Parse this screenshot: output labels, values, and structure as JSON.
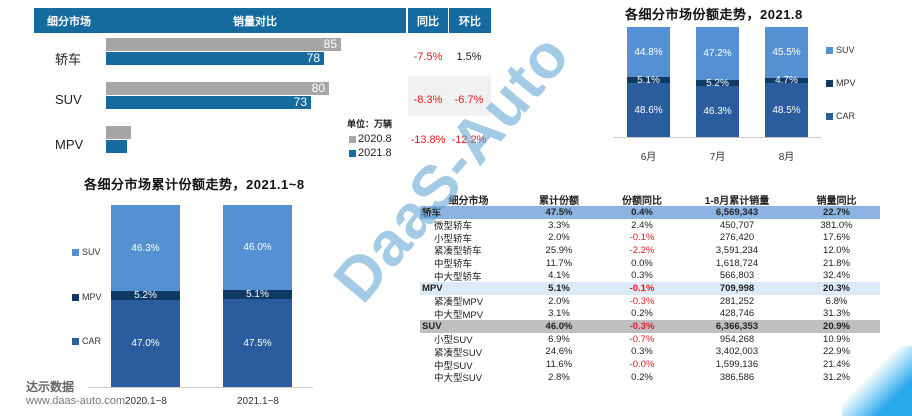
{
  "top_left": {
    "headers": {
      "segment": "细分市场",
      "volume": "销量对比",
      "yoy": "同比",
      "mom": "环比"
    },
    "unit": "单位：万辆",
    "legend": [
      {
        "label": "2020.8",
        "color": "#A6A6A6"
      },
      {
        "label": "2021.8",
        "color": "#156B9E"
      }
    ],
    "rows": [
      {
        "segment": "轿车",
        "v2020": "85",
        "v2021": "78",
        "yoy": "-7.5%",
        "mom": "1.5%"
      },
      {
        "segment": "SUV",
        "v2020": "80",
        "v2021": "73",
        "yoy": "-8.3%",
        "mom": "-6.7%"
      },
      {
        "segment": "MPV",
        "v2020": "8",
        "v2021": "7",
        "yoy": "-13.8%",
        "mom": "-12.2%"
      }
    ]
  },
  "monthly_chart": {
    "title": "各细分市场份额走势，2021.8",
    "legend": [
      "SUV",
      "MPV",
      "CAR"
    ],
    "cols": [
      {
        "label": "6月",
        "suv": "44.8%",
        "mpv": "5.1%",
        "car": "48.6%"
      },
      {
        "label": "7月",
        "suv": "47.2%",
        "mpv": "5.2%",
        "car": "46.3%"
      },
      {
        "label": "8月",
        "suv": "45.5%",
        "mpv": "4.7%",
        "car": "48.5%"
      }
    ]
  },
  "cumulative_chart": {
    "title": "各细分市场累计份额走势，2021.1~8",
    "legend": [
      "SUV",
      "MPV",
      "CAR"
    ],
    "cols": [
      {
        "label": "2020.1~8",
        "suv": "46.3%",
        "mpv": "5.2%",
        "car": "47.0%"
      },
      {
        "label": "2021.1~8",
        "suv": "46.0%",
        "mpv": "5.1%",
        "car": "47.5%"
      }
    ]
  },
  "detail_table": {
    "headers": [
      "细分市场",
      "累计份额",
      "份额同比",
      "1-8月累计销量",
      "销量同比"
    ],
    "rows": [
      [
        "轿车",
        "47.5%",
        "0.4%",
        "6,569,343",
        "22.7%"
      ],
      [
        "微型轿车",
        "3.3%",
        "2.4%",
        "450,707",
        "381.0%"
      ],
      [
        "小型轿车",
        "2.0%",
        "-0.1%",
        "276,420",
        "17.6%"
      ],
      [
        "紧凑型轿车",
        "25.9%",
        "-2.2%",
        "3,591,234",
        "12.0%"
      ],
      [
        "中型轿车",
        "11.7%",
        "0.0%",
        "1,618,724",
        "21.8%"
      ],
      [
        "中大型轿车",
        "4.1%",
        "0.3%",
        "566,803",
        "32.4%"
      ],
      [
        "MPV",
        "5.1%",
        "-0.1%",
        "709,998",
        "20.3%"
      ],
      [
        "紧凑型MPV",
        "2.0%",
        "-0.3%",
        "281,252",
        "6.8%"
      ],
      [
        "中大型MPV",
        "3.1%",
        "0.2%",
        "428,746",
        "31.3%"
      ],
      [
        "SUV",
        "46.0%",
        "-0.3%",
        "6,366,353",
        "20.9%"
      ],
      [
        "小型SUV",
        "6.9%",
        "-0.7%",
        "954,268",
        "10.9%"
      ],
      [
        "紧凑型SUV",
        "24.6%",
        "0.3%",
        "3,402,003",
        "22.9%"
      ],
      [
        "中型SUV",
        "11.6%",
        "-0.0%",
        "1,599,136",
        "21.4%"
      ],
      [
        "中大型SUV",
        "2.8%",
        "0.2%",
        "386,586",
        "31.2%"
      ]
    ]
  },
  "watermark": "DaaS-Auto",
  "brand": {
    "name": "达示数据",
    "url": "www.daas-auto.com"
  },
  "corner_text": "daas-auto",
  "chart_data": [
    {
      "type": "bar",
      "title": "销量对比 (单位：万辆)",
      "categories": [
        "轿车",
        "SUV",
        "MPV"
      ],
      "series": [
        {
          "name": "2020.8",
          "values": [
            85,
            80,
            8
          ]
        },
        {
          "name": "2021.8",
          "values": [
            78,
            73,
            7
          ]
        }
      ],
      "yoy": [
        "-7.5%",
        "-8.3%",
        "-13.8%"
      ],
      "mom": [
        "1.5%",
        "-6.7%",
        "-12.2%"
      ]
    },
    {
      "type": "bar",
      "stacked": true,
      "title": "各细分市场份额走势，2021.8",
      "categories": [
        "6月",
        "7月",
        "8月"
      ],
      "series": [
        {
          "name": "CAR",
          "values": [
            48.6,
            46.3,
            48.5
          ]
        },
        {
          "name": "MPV",
          "values": [
            5.1,
            5.2,
            4.7
          ]
        },
        {
          "name": "SUV",
          "values": [
            44.8,
            47.2,
            45.5
          ]
        }
      ]
    },
    {
      "type": "bar",
      "stacked": true,
      "title": "各细分市场累计份额走势，2021.1~8",
      "categories": [
        "2020.1~8",
        "2021.1~8"
      ],
      "series": [
        {
          "name": "CAR",
          "values": [
            47.0,
            47.5
          ]
        },
        {
          "name": "MPV",
          "values": [
            5.2,
            5.1
          ]
        },
        {
          "name": "SUV",
          "values": [
            46.3,
            46.0
          ]
        }
      ]
    }
  ]
}
